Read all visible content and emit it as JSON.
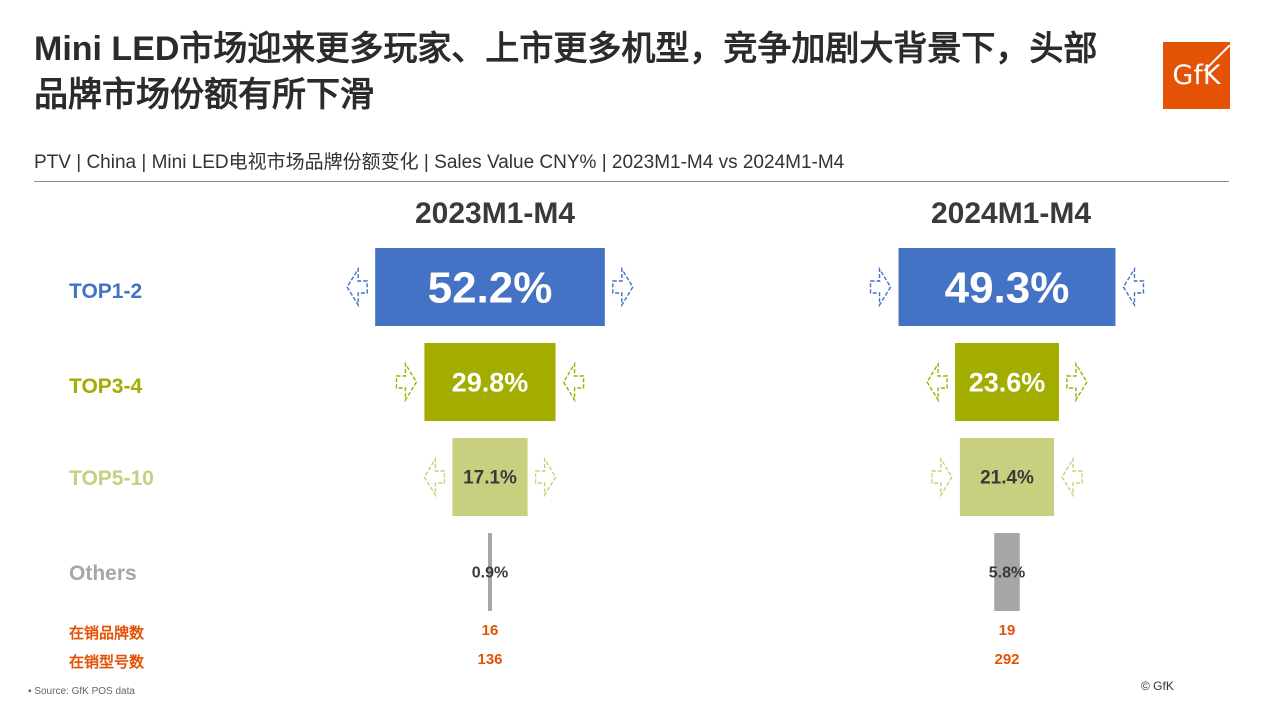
{
  "title": "Mini LED市场迎来更多玩家、上市更多机型，竞争加剧大背景下，头部品牌市场份额有所下滑",
  "subtitle": "PTV | China | Mini LED电视市场品牌份额变化 | Sales Value CNY% | 2023M1-M4 vs 2024M1-M4",
  "logo_text": "GfK",
  "footer": {
    "source": "▪  Source: GfK POS data",
    "copyright": "© GfK"
  },
  "colors": {
    "top1_2": "#4472c4",
    "top3_4": "#a2ad00",
    "top5_10": "#c8cf7e",
    "others": "#a6a6a6",
    "accent": "#e35205"
  },
  "counts": {
    "brands_label": "在销品牌数",
    "models_label": "在销型号数",
    "brands": [
      "16",
      "19"
    ],
    "models": [
      "136",
      "292"
    ]
  },
  "chart_data": {
    "type": "bar",
    "title": "",
    "periods": [
      "2023M1-M4",
      "2024M1-M4"
    ],
    "categories": [
      "TOP1-2",
      "TOP3-4",
      "TOP5-10",
      "Others"
    ],
    "series": [
      {
        "name": "2023M1-M4",
        "values": [
          52.2,
          29.8,
          17.1,
          0.9
        ],
        "labels": [
          "52.2%",
          "29.8%",
          "17.1%",
          "0.9%"
        ]
      },
      {
        "name": "2024M1-M4",
        "values": [
          49.3,
          23.6,
          21.4,
          5.8
        ],
        "labels": [
          "49.3%",
          "23.6%",
          "21.4%",
          "5.8%"
        ]
      }
    ],
    "arrows_2023": [
      "outward",
      "inward",
      "outward",
      "none"
    ],
    "arrows_2024": [
      "inward",
      "outward",
      "inward",
      "none"
    ]
  }
}
